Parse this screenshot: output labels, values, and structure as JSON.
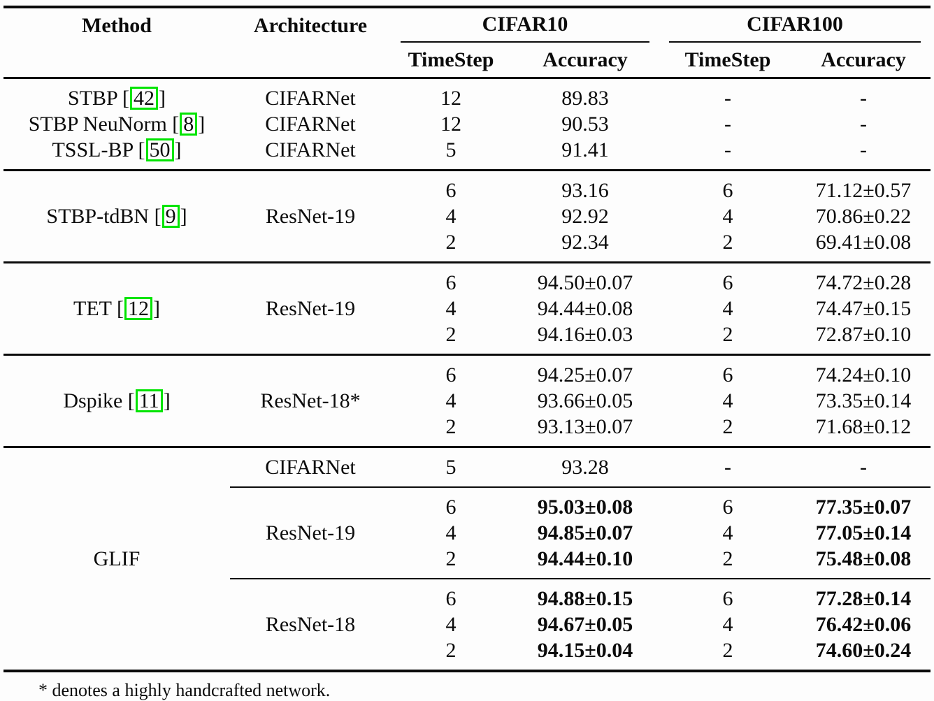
{
  "header": {
    "method": "Method",
    "architecture": "Architecture",
    "cifar10": {
      "label": "CIFAR10",
      "timestep": "TimeStep",
      "accuracy": "Accuracy"
    },
    "cifar100": {
      "label": "CIFAR100",
      "timestep": "TimeStep",
      "accuracy": "Accuracy"
    }
  },
  "rows": [
    {
      "method": {
        "pre": "STBP [",
        "cite": "42",
        "post": "]"
      },
      "arch": "CIFARNet",
      "ts1": "12",
      "acc1": "89.83",
      "ts2": "-",
      "acc2": "-"
    },
    {
      "method": {
        "pre": "STBP NeuNorm [",
        "cite": "8",
        "post": "]"
      },
      "arch": "CIFARNet",
      "ts1": "12",
      "acc1": "90.53",
      "ts2": "-",
      "acc2": "-"
    },
    {
      "method": {
        "pre": "TSSL-BP [",
        "cite": "50",
        "post": "]"
      },
      "arch": "CIFARNet",
      "ts1": "5",
      "acc1": "91.41",
      "ts2": "-",
      "acc2": "-"
    },
    {
      "method": {
        "pre": "STBP-tdBN [",
        "cite": "9",
        "post": "]"
      },
      "arch": "ResNet-19",
      "ts1": "6",
      "acc1": "93.16",
      "ts2": "6",
      "acc2": "71.12±0.57"
    },
    {
      "ts1": "4",
      "acc1": "92.92",
      "ts2": "4",
      "acc2": "70.86±0.22"
    },
    {
      "ts1": "2",
      "acc1": "92.34",
      "ts2": "2",
      "acc2": "69.41±0.08"
    },
    {
      "method": {
        "pre": "TET [",
        "cite": "12",
        "post": "]"
      },
      "arch": "ResNet-19",
      "ts1": "6",
      "acc1": "94.50±0.07",
      "ts2": "6",
      "acc2": "74.72±0.28"
    },
    {
      "ts1": "4",
      "acc1": "94.44±0.08",
      "ts2": "4",
      "acc2": "74.47±0.15"
    },
    {
      "ts1": "2",
      "acc1": "94.16±0.03",
      "ts2": "2",
      "acc2": "72.87±0.10"
    },
    {
      "method": {
        "pre": "Dspike [",
        "cite": "11",
        "post": "]"
      },
      "arch": "ResNet-18*",
      "ts1": "6",
      "acc1": "94.25±0.07",
      "ts2": "6",
      "acc2": "74.24±0.10"
    },
    {
      "ts1": "4",
      "acc1": "93.66±0.05",
      "ts2": "4",
      "acc2": "73.35±0.14"
    },
    {
      "ts1": "2",
      "acc1": "93.13±0.07",
      "ts2": "2",
      "acc2": "71.68±0.12"
    },
    {
      "method": {
        "pre": "GLIF"
      },
      "arch": "CIFARNet",
      "ts1": "5",
      "acc1": "93.28",
      "ts2": "-",
      "acc2": "-"
    },
    {
      "arch": "ResNet-19",
      "ts1": "6",
      "acc1": "95.03±0.08",
      "ts2": "6",
      "acc2": "77.35±0.07"
    },
    {
      "ts1": "4",
      "acc1": "94.85±0.07",
      "ts2": "4",
      "acc2": "77.05±0.14"
    },
    {
      "ts1": "2",
      "acc1": "94.44±0.10",
      "ts2": "2",
      "acc2": "75.48±0.08"
    },
    {
      "arch": "ResNet-18",
      "ts1": "6",
      "acc1": "94.88±0.15",
      "ts2": "6",
      "acc2": "77.28±0.14"
    },
    {
      "ts1": "4",
      "acc1": "94.67±0.05",
      "ts2": "4",
      "acc2": "76.42±0.06"
    },
    {
      "ts1": "2",
      "acc1": "94.15±0.04",
      "ts2": "2",
      "acc2": "74.60±0.24"
    }
  ],
  "footnote": "* denotes a highly handcrafted network.",
  "colors": {
    "citation_box_border": "#00e400"
  }
}
